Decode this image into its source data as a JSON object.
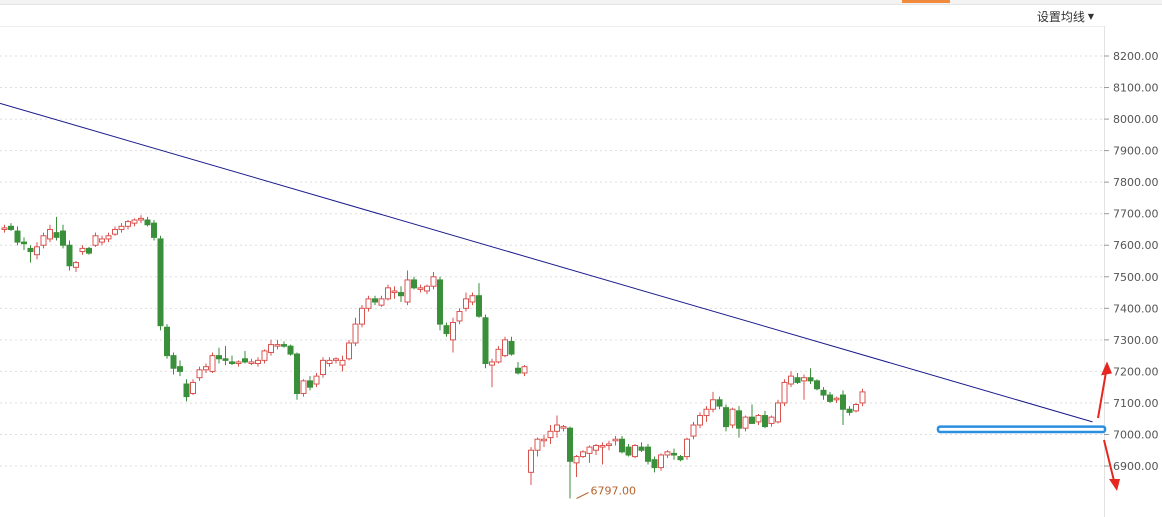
{
  "toolbar": {
    "ma_setting_label": "设置均线"
  },
  "colors": {
    "up": "#d9534f",
    "down": "#3a8f3a",
    "trendline": "#1a1a8c",
    "support_box": "#2b8fe0",
    "arrow": "#e5271f",
    "grid": "#dddddd",
    "low_label": "#b8642e"
  },
  "chart_data": {
    "type": "candlestick",
    "ylim": [
      6790,
      8260
    ],
    "y_ticks": [
      "8200.00",
      "8100.00",
      "8000.00",
      "7900.00",
      "7800.00",
      "7700.00",
      "7600.00",
      "7500.00",
      "7400.00",
      "7300.00",
      "7200.00",
      "7100.00",
      "7000.00",
      "6900.00"
    ],
    "y_tick_values": [
      8200,
      8100,
      8000,
      7900,
      7800,
      7700,
      7600,
      7500,
      7400,
      7300,
      7200,
      7100,
      7000,
      6900
    ],
    "low_annotation": {
      "label": "6797.00",
      "value": 6797,
      "bar_index": 88
    },
    "trendline": {
      "start": {
        "bar_index": 0,
        "value": 8050
      },
      "end": {
        "bar_index": 167,
        "value": 7040
      }
    },
    "support_zone": {
      "bar_range": [
        144,
        170
      ],
      "value_range": [
        7008,
        7025
      ]
    },
    "candles": [
      {
        "o": 7650,
        "h": 7665,
        "l": 7640,
        "c": 7655
      },
      {
        "o": 7660,
        "h": 7670,
        "l": 7645,
        "c": 7650
      },
      {
        "o": 7645,
        "h": 7660,
        "l": 7600,
        "c": 7610
      },
      {
        "o": 7610,
        "h": 7625,
        "l": 7585,
        "c": 7605
      },
      {
        "o": 7590,
        "h": 7600,
        "l": 7545,
        "c": 7580
      },
      {
        "o": 7570,
        "h": 7610,
        "l": 7555,
        "c": 7595
      },
      {
        "o": 7600,
        "h": 7640,
        "l": 7590,
        "c": 7630
      },
      {
        "o": 7620,
        "h": 7665,
        "l": 7610,
        "c": 7650
      },
      {
        "o": 7640,
        "h": 7690,
        "l": 7615,
        "c": 7625
      },
      {
        "o": 7645,
        "h": 7665,
        "l": 7590,
        "c": 7600
      },
      {
        "o": 7600,
        "h": 7615,
        "l": 7520,
        "c": 7535
      },
      {
        "o": 7530,
        "h": 7550,
        "l": 7515,
        "c": 7545
      },
      {
        "o": 7580,
        "h": 7600,
        "l": 7570,
        "c": 7590
      },
      {
        "o": 7590,
        "h": 7595,
        "l": 7570,
        "c": 7575
      },
      {
        "o": 7600,
        "h": 7640,
        "l": 7595,
        "c": 7630
      },
      {
        "o": 7610,
        "h": 7630,
        "l": 7600,
        "c": 7620
      },
      {
        "o": 7620,
        "h": 7640,
        "l": 7610,
        "c": 7630
      },
      {
        "o": 7635,
        "h": 7660,
        "l": 7630,
        "c": 7650
      },
      {
        "o": 7650,
        "h": 7670,
        "l": 7640,
        "c": 7660
      },
      {
        "o": 7660,
        "h": 7680,
        "l": 7650,
        "c": 7675
      },
      {
        "o": 7670,
        "h": 7685,
        "l": 7660,
        "c": 7680
      },
      {
        "o": 7680,
        "h": 7695,
        "l": 7670,
        "c": 7685
      },
      {
        "o": 7680,
        "h": 7690,
        "l": 7660,
        "c": 7665
      },
      {
        "o": 7670,
        "h": 7680,
        "l": 7615,
        "c": 7625
      },
      {
        "o": 7620,
        "h": 7630,
        "l": 7330,
        "c": 7345
      },
      {
        "o": 7340,
        "h": 7350,
        "l": 7240,
        "c": 7250
      },
      {
        "o": 7250,
        "h": 7260,
        "l": 7190,
        "c": 7210
      },
      {
        "o": 7215,
        "h": 7235,
        "l": 7185,
        "c": 7200
      },
      {
        "o": 7160,
        "h": 7175,
        "l": 7105,
        "c": 7120
      },
      {
        "o": 7130,
        "h": 7175,
        "l": 7125,
        "c": 7165
      },
      {
        "o": 7180,
        "h": 7215,
        "l": 7170,
        "c": 7205
      },
      {
        "o": 7205,
        "h": 7225,
        "l": 7195,
        "c": 7215
      },
      {
        "o": 7200,
        "h": 7260,
        "l": 7195,
        "c": 7250
      },
      {
        "o": 7250,
        "h": 7275,
        "l": 7225,
        "c": 7240
      },
      {
        "o": 7240,
        "h": 7280,
        "l": 7220,
        "c": 7235
      },
      {
        "o": 7230,
        "h": 7250,
        "l": 7220,
        "c": 7225
      },
      {
        "o": 7225,
        "h": 7235,
        "l": 7215,
        "c": 7230
      },
      {
        "o": 7240,
        "h": 7265,
        "l": 7225,
        "c": 7230
      },
      {
        "o": 7225,
        "h": 7240,
        "l": 7220,
        "c": 7230
      },
      {
        "o": 7225,
        "h": 7245,
        "l": 7215,
        "c": 7235
      },
      {
        "o": 7235,
        "h": 7270,
        "l": 7225,
        "c": 7265
      },
      {
        "o": 7260,
        "h": 7300,
        "l": 7250,
        "c": 7285
      },
      {
        "o": 7280,
        "h": 7300,
        "l": 7270,
        "c": 7285
      },
      {
        "o": 7285,
        "h": 7295,
        "l": 7275,
        "c": 7280
      },
      {
        "o": 7280,
        "h": 7285,
        "l": 7250,
        "c": 7255
      },
      {
        "o": 7255,
        "h": 7260,
        "l": 7110,
        "c": 7130
      },
      {
        "o": 7130,
        "h": 7175,
        "l": 7120,
        "c": 7170
      },
      {
        "o": 7170,
        "h": 7185,
        "l": 7140,
        "c": 7150
      },
      {
        "o": 7160,
        "h": 7195,
        "l": 7150,
        "c": 7185
      },
      {
        "o": 7190,
        "h": 7245,
        "l": 7180,
        "c": 7235
      },
      {
        "o": 7225,
        "h": 7245,
        "l": 7215,
        "c": 7235
      },
      {
        "o": 7235,
        "h": 7245,
        "l": 7225,
        "c": 7240
      },
      {
        "o": 7220,
        "h": 7250,
        "l": 7200,
        "c": 7235
      },
      {
        "o": 7240,
        "h": 7300,
        "l": 7235,
        "c": 7290
      },
      {
        "o": 7290,
        "h": 7370,
        "l": 7280,
        "c": 7350
      },
      {
        "o": 7350,
        "h": 7410,
        "l": 7340,
        "c": 7400
      },
      {
        "o": 7400,
        "h": 7440,
        "l": 7390,
        "c": 7430
      },
      {
        "o": 7430,
        "h": 7440,
        "l": 7410,
        "c": 7420
      },
      {
        "o": 7410,
        "h": 7440,
        "l": 7405,
        "c": 7430
      },
      {
        "o": 7430,
        "h": 7475,
        "l": 7425,
        "c": 7465
      },
      {
        "o": 7450,
        "h": 7470,
        "l": 7430,
        "c": 7455
      },
      {
        "o": 7450,
        "h": 7470,
        "l": 7420,
        "c": 7440
      },
      {
        "o": 7420,
        "h": 7520,
        "l": 7410,
        "c": 7490
      },
      {
        "o": 7490,
        "h": 7500,
        "l": 7460,
        "c": 7465
      },
      {
        "o": 7460,
        "h": 7475,
        "l": 7450,
        "c": 7465
      },
      {
        "o": 7455,
        "h": 7475,
        "l": 7445,
        "c": 7470
      },
      {
        "o": 7470,
        "h": 7515,
        "l": 7460,
        "c": 7500
      },
      {
        "o": 7490,
        "h": 7500,
        "l": 7330,
        "c": 7350
      },
      {
        "o": 7345,
        "h": 7355,
        "l": 7310,
        "c": 7320
      },
      {
        "o": 7300,
        "h": 7370,
        "l": 7260,
        "c": 7355
      },
      {
        "o": 7360,
        "h": 7400,
        "l": 7350,
        "c": 7390
      },
      {
        "o": 7400,
        "h": 7450,
        "l": 7390,
        "c": 7430
      },
      {
        "o": 7420,
        "h": 7450,
        "l": 7410,
        "c": 7440
      },
      {
        "o": 7440,
        "h": 7480,
        "l": 7370,
        "c": 7375
      },
      {
        "o": 7370,
        "h": 7380,
        "l": 7210,
        "c": 7225
      },
      {
        "o": 7220,
        "h": 7240,
        "l": 7150,
        "c": 7230
      },
      {
        "o": 7230,
        "h": 7280,
        "l": 7225,
        "c": 7270
      },
      {
        "o": 7250,
        "h": 7310,
        "l": 7245,
        "c": 7300
      },
      {
        "o": 7295,
        "h": 7310,
        "l": 7250,
        "c": 7255
      },
      {
        "o": 7210,
        "h": 7230,
        "l": 7190,
        "c": 7195
      },
      {
        "o": 7195,
        "h": 7220,
        "l": 7185,
        "c": 7215
      },
      {
        "o": 6880,
        "h": 6960,
        "l": 6840,
        "c": 6950
      },
      {
        "o": 6950,
        "h": 6990,
        "l": 6930,
        "c": 6985
      },
      {
        "o": 6980,
        "h": 7000,
        "l": 6960,
        "c": 6985
      },
      {
        "o": 6990,
        "h": 7030,
        "l": 6970,
        "c": 7010
      },
      {
        "o": 7010,
        "h": 7060,
        "l": 6990,
        "c": 7030
      },
      {
        "o": 7020,
        "h": 7030,
        "l": 7010,
        "c": 7025
      },
      {
        "o": 7020,
        "h": 7025,
        "l": 6797,
        "c": 6915
      },
      {
        "o": 6910,
        "h": 6935,
        "l": 6865,
        "c": 6930
      },
      {
        "o": 6930,
        "h": 6950,
        "l": 6925,
        "c": 6945
      },
      {
        "o": 6940,
        "h": 6965,
        "l": 6910,
        "c": 6960
      },
      {
        "o": 6950,
        "h": 6970,
        "l": 6935,
        "c": 6965
      },
      {
        "o": 6960,
        "h": 6975,
        "l": 6905,
        "c": 6965
      },
      {
        "o": 6965,
        "h": 6980,
        "l": 6950,
        "c": 6970
      },
      {
        "o": 6980,
        "h": 6995,
        "l": 6965,
        "c": 6985
      },
      {
        "o": 6985,
        "h": 6995,
        "l": 6940,
        "c": 6945
      },
      {
        "o": 6960,
        "h": 6970,
        "l": 6930,
        "c": 6935
      },
      {
        "o": 6930,
        "h": 6970,
        "l": 6925,
        "c": 6965
      },
      {
        "o": 6960,
        "h": 6975,
        "l": 6945,
        "c": 6950
      },
      {
        "o": 6960,
        "h": 6970,
        "l": 6905,
        "c": 6915
      },
      {
        "o": 6920,
        "h": 6930,
        "l": 6880,
        "c": 6895
      },
      {
        "o": 6895,
        "h": 6940,
        "l": 6885,
        "c": 6935
      },
      {
        "o": 6935,
        "h": 6950,
        "l": 6925,
        "c": 6945
      },
      {
        "o": 6940,
        "h": 6955,
        "l": 6920,
        "c": 6935
      },
      {
        "o": 6930,
        "h": 6935,
        "l": 6915,
        "c": 6920
      },
      {
        "o": 6930,
        "h": 6990,
        "l": 6920,
        "c": 6985
      },
      {
        "o": 6995,
        "h": 7040,
        "l": 6985,
        "c": 7030
      },
      {
        "o": 7030,
        "h": 7070,
        "l": 7020,
        "c": 7060
      },
      {
        "o": 7060,
        "h": 7090,
        "l": 7040,
        "c": 7080
      },
      {
        "o": 7080,
        "h": 7135,
        "l": 7070,
        "c": 7110
      },
      {
        "o": 7110,
        "h": 7120,
        "l": 7080,
        "c": 7090
      },
      {
        "o": 7085,
        "h": 7095,
        "l": 7010,
        "c": 7025
      },
      {
        "o": 7030,
        "h": 7085,
        "l": 7020,
        "c": 7080
      },
      {
        "o": 7075,
        "h": 7090,
        "l": 6990,
        "c": 7020
      },
      {
        "o": 7020,
        "h": 7060,
        "l": 7010,
        "c": 7055
      },
      {
        "o": 7055,
        "h": 7095,
        "l": 7045,
        "c": 7035
      },
      {
        "o": 7040,
        "h": 7065,
        "l": 7030,
        "c": 7060
      },
      {
        "o": 7060,
        "h": 7075,
        "l": 7020,
        "c": 7025
      },
      {
        "o": 7035,
        "h": 7060,
        "l": 7025,
        "c": 7055
      },
      {
        "o": 7040,
        "h": 7110,
        "l": 7035,
        "c": 7100
      },
      {
        "o": 7100,
        "h": 7175,
        "l": 7090,
        "c": 7165
      },
      {
        "o": 7160,
        "h": 7200,
        "l": 7150,
        "c": 7185
      },
      {
        "o": 7180,
        "h": 7195,
        "l": 7160,
        "c": 7165
      },
      {
        "o": 7170,
        "h": 7190,
        "l": 7110,
        "c": 7180
      },
      {
        "o": 7180,
        "h": 7210,
        "l": 7160,
        "c": 7170
      },
      {
        "o": 7170,
        "h": 7175,
        "l": 7140,
        "c": 7145
      },
      {
        "o": 7140,
        "h": 7150,
        "l": 7110,
        "c": 7125
      },
      {
        "o": 7125,
        "h": 7135,
        "l": 7100,
        "c": 7105
      },
      {
        "o": 7110,
        "h": 7120,
        "l": 7100,
        "c": 7115
      },
      {
        "o": 7125,
        "h": 7140,
        "l": 7030,
        "c": 7080
      },
      {
        "o": 7080,
        "h": 7090,
        "l": 7060,
        "c": 7070
      },
      {
        "o": 7075,
        "h": 7100,
        "l": 7070,
        "c": 7095
      },
      {
        "o": 7100,
        "h": 7145,
        "l": 7090,
        "c": 7135
      }
    ]
  }
}
